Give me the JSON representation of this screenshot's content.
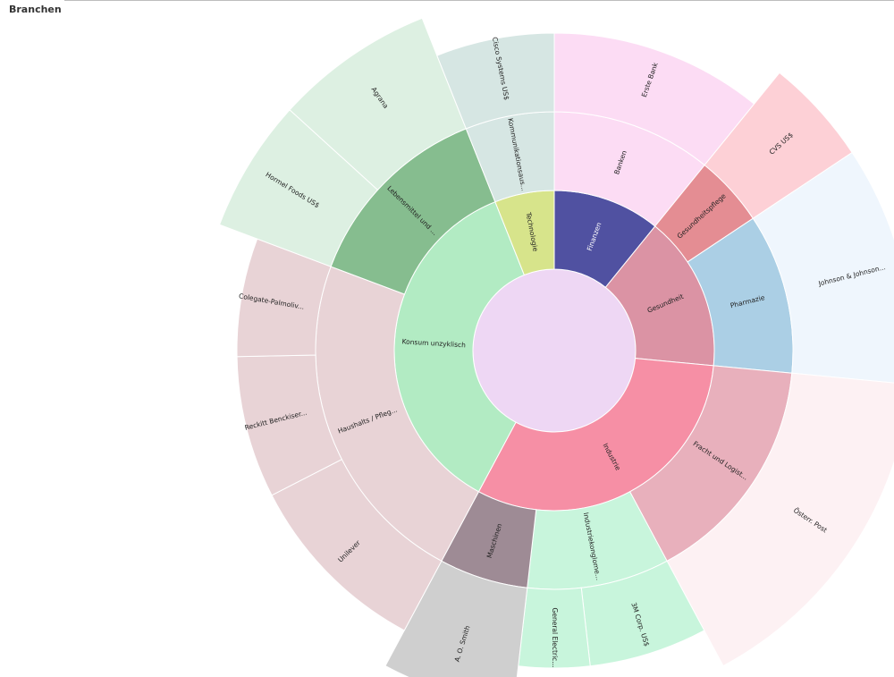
{
  "header": {
    "title": "Branchen"
  },
  "chart_data": {
    "type": "sunburst",
    "children": [
      {
        "name": "Finanzen",
        "color": "#5051a1",
        "children": [
          {
            "name": "Banken",
            "color": "#fcdcf4",
            "children": [
              {
                "name": "Erste Bank",
                "color": "#fcdcf4",
                "value": 9
              }
            ]
          }
        ]
      },
      {
        "name": "Gesundheit",
        "color": "#db93a4",
        "children": [
          {
            "name": "Gesundheitspflege",
            "color": "#e48d93",
            "children": [
              {
                "name": "CVS US$",
                "color": "#fdd0d6",
                "value": 4
              }
            ]
          },
          {
            "name": "Pharmazie",
            "color": "#abcfe5",
            "children": [
              {
                "name": "Johnson & Johnson...",
                "color": "#eff6fd",
                "value": 9
              }
            ]
          }
        ]
      },
      {
        "name": "Industrie",
        "color": "#f68fa5",
        "children": [
          {
            "name": "Fracht und Logist...",
            "color": "#e8b0bc",
            "children": [
              {
                "name": "Österr. Post",
                "color": "#fdf1f3",
                "value": 13
              }
            ]
          },
          {
            "name": "Industriekonglome...",
            "color": "#c8f5dc",
            "children": [
              {
                "name": "3M Corp. US$",
                "color": "#c8f5dc",
                "value": 5
              },
              {
                "name": "General Electric...",
                "color": "#c8f5dc",
                "value": 3
              }
            ]
          },
          {
            "name": "Maschinen",
            "color": "#9e8b95",
            "children": [
              {
                "name": "A. O. Smith",
                "color": "#cfcfcf",
                "value": 5
              }
            ]
          }
        ]
      },
      {
        "name": "Konsum unzyklisch",
        "color": "#b2ebc3",
        "children": [
          {
            "name": "Haushalts / Pfleg...",
            "color": "#e8d3d6",
            "children": [
              {
                "name": "Unilever",
                "color": "#e8d3d6",
                "value": 8
              },
              {
                "name": "Reckitt Benckiser...",
                "color": "#e8d3d6",
                "value": 6
              },
              {
                "name": "Colegate-Palmoliv...",
                "color": "#e8d3d6",
                "value": 5
              }
            ]
          },
          {
            "name": "Lebensmittel und ...",
            "color": "#86bd8f",
            "children": [
              {
                "name": "Hormel Foods US$",
                "color": "#ddf0e2",
                "value": 5
              },
              {
                "name": "Agrana",
                "color": "#ddf0e2",
                "value": 6
              }
            ]
          }
        ]
      },
      {
        "name": "Technologie",
        "color": "#d7e48b",
        "children": [
          {
            "name": "Kommunikationsaus...",
            "color": "#d6e6e3",
            "children": [
              {
                "name": "Cisco Systems US$",
                "color": "#d6e6e3",
                "value": 5
              }
            ]
          }
        ]
      }
    ]
  }
}
